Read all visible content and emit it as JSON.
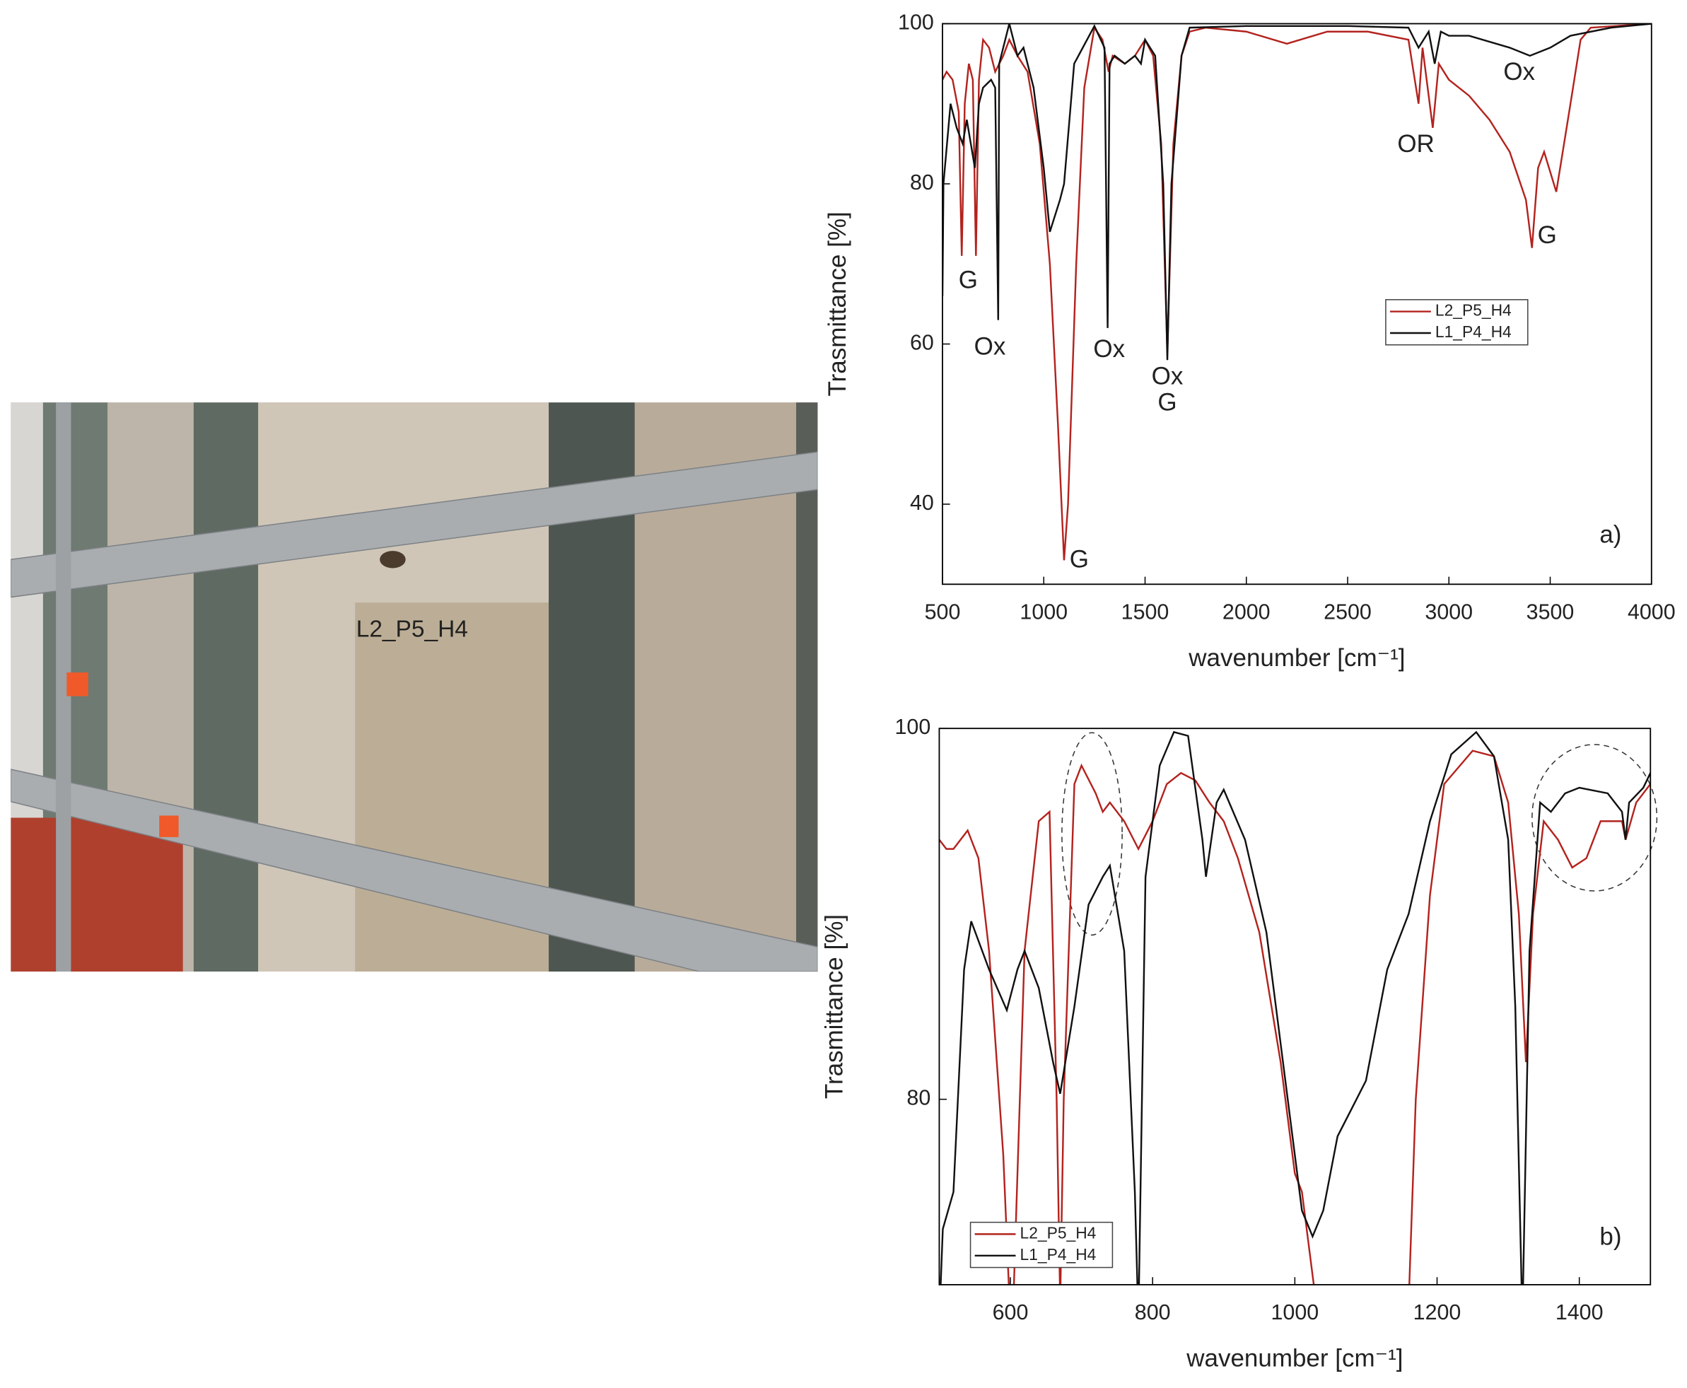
{
  "photo_label": "L2_P5_H4",
  "chart_data": [
    {
      "type": "line",
      "panel": "a",
      "xlabel": "wavenumber [cm⁻¹]",
      "ylabel": "Trasmittance [%]",
      "xlim": [
        500,
        4000
      ],
      "xticks": [
        500,
        1000,
        1500,
        2000,
        2500,
        3000,
        3500,
        4000
      ],
      "ylim": [
        30,
        100
      ],
      "yticks": [
        40,
        60,
        80,
        100
      ],
      "legend": "center right",
      "series": [
        {
          "name": "L2_P5_H4",
          "color": "#b3231e",
          "x": [
            500,
            520,
            550,
            580,
            595,
            610,
            630,
            650,
            665,
            680,
            700,
            730,
            760,
            800,
            830,
            870,
            920,
            980,
            1030,
            1070,
            1100,
            1120,
            1160,
            1200,
            1250,
            1290,
            1320,
            1340,
            1400,
            1450,
            1500,
            1540,
            1580,
            1610,
            1640,
            1680,
            1720,
            1800,
            2000,
            2200,
            2400,
            2600,
            2800,
            2850,
            2870,
            2920,
            2950,
            3000,
            3100,
            3200,
            3300,
            3380,
            3410,
            3440,
            3470,
            3530,
            3600,
            3650,
            3700,
            4000
          ],
          "values": [
            93,
            94,
            93,
            89,
            71,
            90,
            95,
            93,
            71,
            93,
            98,
            97,
            94,
            96,
            98,
            96,
            94,
            85,
            70,
            50,
            33,
            40,
            70,
            92,
            99.5,
            98,
            94,
            96,
            95,
            96,
            98,
            96,
            85,
            59,
            85,
            96,
            99,
            99.5,
            99,
            97.5,
            99,
            99,
            98,
            90,
            97,
            87,
            95,
            93,
            91,
            88,
            84,
            78,
            72,
            82,
            84,
            79,
            90,
            98,
            99.5,
            100
          ]
        },
        {
          "name": "L1_P4_H4",
          "color": "#111111",
          "x": [
            500,
            505,
            540,
            570,
            600,
            620,
            660,
            680,
            700,
            740,
            760,
            775,
            780,
            830,
            870,
            900,
            950,
            1000,
            1030,
            1080,
            1100,
            1150,
            1250,
            1300,
            1315,
            1325,
            1350,
            1400,
            1450,
            1480,
            1500,
            1550,
            1590,
            1610,
            1630,
            1680,
            1720,
            2000,
            2500,
            2800,
            2850,
            2900,
            2930,
            2960,
            3000,
            3100,
            3300,
            3400,
            3500,
            3600,
            3800,
            4000
          ],
          "values": [
            66,
            80,
            90,
            87,
            85,
            88,
            82,
            90,
            92,
            93,
            92,
            63,
            95,
            100,
            96,
            97,
            92,
            82,
            74,
            78,
            80,
            95,
            99.7,
            97,
            62,
            95,
            96,
            95,
            96,
            95,
            98,
            96,
            80,
            58,
            80,
            96,
            99.5,
            99.7,
            99.7,
            99.5,
            97,
            99,
            95,
            99,
            98.5,
            98.5,
            97,
            96,
            97,
            98.5,
            99.5,
            100
          ]
        }
      ],
      "annotations": [
        {
          "text": "G",
          "x": 627,
          "y": 67.8
        },
        {
          "text": "Ox",
          "x": 734,
          "y": 59.5
        },
        {
          "text": "Ox",
          "x": 1323,
          "y": 59.2
        },
        {
          "text": "Ox",
          "x": 1610,
          "y": 55.8
        },
        {
          "text": "G",
          "x": 1610,
          "y": 52.5
        },
        {
          "text": "G",
          "x": 1175,
          "y": 32.9
        },
        {
          "text": "OR",
          "x": 2837,
          "y": 84.8
        },
        {
          "text": "Ox",
          "x": 3347,
          "y": 93.8
        },
        {
          "text": "G",
          "x": 3485,
          "y": 73.4
        },
        {
          "text": "a)",
          "x": 3798,
          "y": 36
        }
      ]
    },
    {
      "type": "line",
      "panel": "b",
      "xlabel": "wavenumber [cm⁻¹]",
      "ylabel": "Trasmittance [%]",
      "xlim": [
        500,
        1500
      ],
      "xticks": [
        600,
        800,
        1000,
        1200,
        1400
      ],
      "ylim": [
        70,
        100
      ],
      "yticks": [
        80,
        100
      ],
      "legend": "lower left",
      "series": [
        {
          "name": "L2_P5_H4",
          "color": "#b3231e",
          "x": [
            500,
            510,
            520,
            540,
            555,
            570,
            590,
            600,
            605,
            620,
            640,
            655,
            665,
            670,
            675,
            690,
            700,
            720,
            730,
            740,
            760,
            780,
            800,
            820,
            840,
            860,
            880,
            900,
            920,
            950,
            980,
            1000,
            1010,
            1020,
            1030,
            1160,
            1170,
            1190,
            1210,
            1250,
            1280,
            1300,
            1315,
            1325,
            1335,
            1350,
            1370,
            1390,
            1410,
            1430,
            1460,
            1465,
            1480,
            1500
          ],
          "values": [
            94,
            93.5,
            93.5,
            94.5,
            93,
            88,
            77,
            68,
            70,
            88,
            95,
            95.5,
            80,
            69,
            80,
            97,
            98,
            96.5,
            95.5,
            96,
            95,
            93.5,
            95,
            97,
            97.6,
            97.2,
            96,
            95,
            93,
            89,
            82,
            76,
            75,
            72,
            69,
            69,
            80,
            91,
            97,
            98.8,
            98.5,
            96,
            90,
            82,
            90,
            95,
            94,
            92.5,
            93,
            95,
            95,
            94,
            96,
            97
          ]
        },
        {
          "name": "L1_P4_H4",
          "color": "#111111",
          "x": [
            500,
            505,
            520,
            535,
            545,
            570,
            595,
            610,
            620,
            640,
            660,
            670,
            690,
            710,
            730,
            740,
            760,
            775,
            780,
            790,
            810,
            830,
            850,
            870,
            875,
            890,
            900,
            930,
            960,
            990,
            1010,
            1025,
            1040,
            1060,
            1080,
            1100,
            1130,
            1160,
            1190,
            1220,
            1255,
            1280,
            1300,
            1310,
            1320,
            1330,
            1345,
            1360,
            1380,
            1400,
            1440,
            1460,
            1465,
            1470,
            1490,
            1500
          ],
          "values": [
            68,
            73,
            75,
            87,
            89.6,
            87,
            84.8,
            87,
            88,
            86,
            82,
            80.3,
            85,
            90.5,
            92,
            92.6,
            88,
            75,
            68,
            92,
            98,
            99.8,
            99.6,
            94,
            92,
            96,
            96.7,
            94,
            89,
            80,
            74,
            72.6,
            74,
            78,
            79.5,
            81,
            87,
            90,
            95,
            98.6,
            99.8,
            98.5,
            94,
            85,
            68,
            88,
            96,
            95.5,
            96.5,
            96.8,
            96.5,
            95.5,
            94,
            96,
            96.8,
            97.6
          ]
        }
      ],
      "annotations": [
        {
          "text": "b)",
          "x": 1444,
          "y": 72.5
        }
      ]
    }
  ]
}
